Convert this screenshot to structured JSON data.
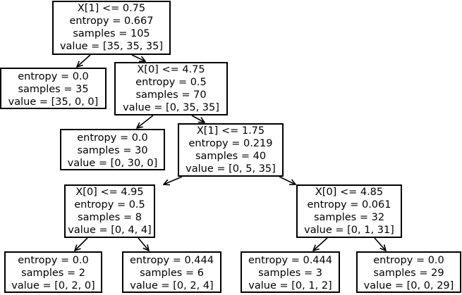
{
  "nodes": [
    {
      "id": "n0",
      "lines": [
        "X[1] <= 0.75",
        "entropy = 0.667",
        "samples = 105",
        "value = [35, 35, 35]"
      ]
    },
    {
      "id": "n1",
      "lines": [
        "entropy = 0.0",
        "samples = 35",
        "value = [35, 0, 0]"
      ]
    },
    {
      "id": "n2",
      "lines": [
        "X[0] <= 4.75",
        "entropy = 0.5",
        "samples = 70",
        "value = [0, 35, 35]"
      ]
    },
    {
      "id": "n3",
      "lines": [
        "entropy = 0.0",
        "samples = 30",
        "value = [0, 30, 0]"
      ]
    },
    {
      "id": "n4",
      "lines": [
        "X[1] <= 1.75",
        "entropy = 0.219",
        "samples = 40",
        "value = [0, 5, 35]"
      ]
    },
    {
      "id": "n5",
      "lines": [
        "X[0] <= 4.95",
        "entropy = 0.5",
        "samples = 8",
        "value = [0, 4, 4]"
      ]
    },
    {
      "id": "n6",
      "lines": [
        "X[0] <= 4.85",
        "entropy = 0.061",
        "samples = 32",
        "value = [0, 1, 31]"
      ]
    },
    {
      "id": "n7",
      "lines": [
        "entropy = 0.0",
        "samples = 2",
        "value = [0, 2, 0]"
      ]
    },
    {
      "id": "n8",
      "lines": [
        "entropy = 0.444",
        "samples = 6",
        "value = [0, 2, 4]"
      ]
    },
    {
      "id": "n9",
      "lines": [
        "entropy = 0.444",
        "samples = 3",
        "value = [0, 1, 2]"
      ]
    },
    {
      "id": "n10",
      "lines": [
        "entropy = 0.0",
        "samples = 29",
        "value = [0, 0, 29]"
      ]
    }
  ],
  "edges": [
    {
      "from": "n0",
      "to": "n1"
    },
    {
      "from": "n0",
      "to": "n2"
    },
    {
      "from": "n2",
      "to": "n3"
    },
    {
      "from": "n2",
      "to": "n4"
    },
    {
      "from": "n4",
      "to": "n5"
    },
    {
      "from": "n4",
      "to": "n6"
    },
    {
      "from": "n5",
      "to": "n7"
    },
    {
      "from": "n5",
      "to": "n8"
    },
    {
      "from": "n6",
      "to": "n9"
    },
    {
      "from": "n6",
      "to": "n10"
    }
  ],
  "colors": {
    "line": "#000000",
    "background": "#ffffff"
  }
}
